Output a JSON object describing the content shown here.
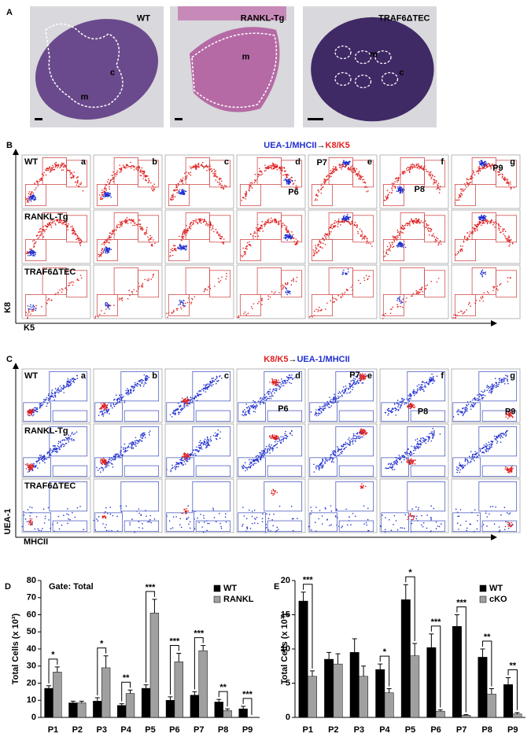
{
  "panels": {
    "A": {
      "label": "A",
      "images": [
        {
          "title": "WT",
          "labels": [
            "c",
            "m"
          ]
        },
        {
          "title": "RANKL-Tg",
          "labels": [
            "m"
          ]
        },
        {
          "title": "TRAF6ΔTEC",
          "labels": [
            "m",
            "c"
          ]
        }
      ]
    },
    "B": {
      "label": "B",
      "title_parts": [
        "UEA-1/MHCII",
        "→",
        "K8/K5"
      ],
      "rows": [
        "WT",
        "RANKL-Tg",
        "TRAF6ΔTEC"
      ],
      "columns": [
        "a",
        "b",
        "c",
        "d",
        "e",
        "f",
        "g"
      ],
      "gate_labels": [
        null,
        null,
        null,
        "P6",
        "P7",
        "P8",
        "P9"
      ],
      "y_label": "K8",
      "x_label": "K5"
    },
    "C": {
      "label": "C",
      "title_parts": [
        "K8/K5",
        "→",
        "UEA-1/MHCII"
      ],
      "rows": [
        "WT",
        "RANKL-Tg",
        "TRAF6ΔTEC"
      ],
      "columns": [
        "a",
        "b",
        "c",
        "d",
        "e",
        "f",
        "g"
      ],
      "gate_labels": [
        null,
        null,
        null,
        "P6",
        "P7",
        "P8",
        "P9"
      ],
      "y_label": "UEA-1",
      "x_label": "MHCII"
    }
  },
  "chart_data": [
    {
      "type": "bar",
      "panel": "D",
      "title": "Gate: Total",
      "ylabel": "Total Cells (x 10³)",
      "categories": [
        "P1",
        "P2",
        "P3",
        "P4",
        "P5",
        "P6",
        "P7",
        "P8",
        "P9"
      ],
      "series": [
        {
          "name": "WT",
          "color": "#000000",
          "values": [
            17,
            8.5,
            9.5,
            7,
            17,
            10,
            13,
            9,
            5
          ],
          "errors": [
            1.5,
            1,
            2,
            1,
            2,
            2,
            2,
            1.5,
            1.5
          ]
        },
        {
          "name": "RANKL",
          "color": "#a0a0a0",
          "values": [
            26.5,
            8.5,
            29,
            14,
            61,
            32.5,
            39,
            4,
            0
          ],
          "errors": [
            3,
            1,
            7,
            2,
            8,
            5,
            3,
            1,
            0
          ]
        }
      ],
      "significance": [
        "*",
        null,
        "*",
        "**",
        "***",
        "***",
        "***",
        "**",
        "***"
      ],
      "ylim": [
        0,
        80
      ],
      "yticks": [
        0,
        10,
        20,
        30,
        40,
        50,
        60,
        70,
        80
      ],
      "legend": "upper right"
    },
    {
      "type": "bar",
      "panel": "E",
      "ylabel": "Total Cells (x 10³)",
      "categories": [
        "P1",
        "P2",
        "P3",
        "P4",
        "P5",
        "P6",
        "P7",
        "P8",
        "P9"
      ],
      "series": [
        {
          "name": "WT",
          "color": "#000000",
          "values": [
            17,
            8.5,
            9.5,
            7,
            17.2,
            10.2,
            13.3,
            8.8,
            4.8
          ],
          "errors": [
            1.3,
            1,
            2,
            0.8,
            2.2,
            2,
            1.7,
            1.2,
            1
          ]
        },
        {
          "name": "cKO",
          "color": "#a0a0a0",
          "values": [
            6,
            7.8,
            6,
            3.6,
            9,
            0.9,
            0.3,
            3.4,
            0.5
          ],
          "errors": [
            0.8,
            1.5,
            1.5,
            0.6,
            1.8,
            0.2,
            0.1,
            0.8,
            0.2
          ]
        }
      ],
      "significance": [
        "***",
        null,
        null,
        "*",
        "*",
        "***",
        "***",
        "**",
        "**"
      ],
      "ylim": [
        0,
        20
      ],
      "yticks": [
        0,
        5,
        10,
        15,
        20
      ],
      "legend": "upper right"
    }
  ]
}
